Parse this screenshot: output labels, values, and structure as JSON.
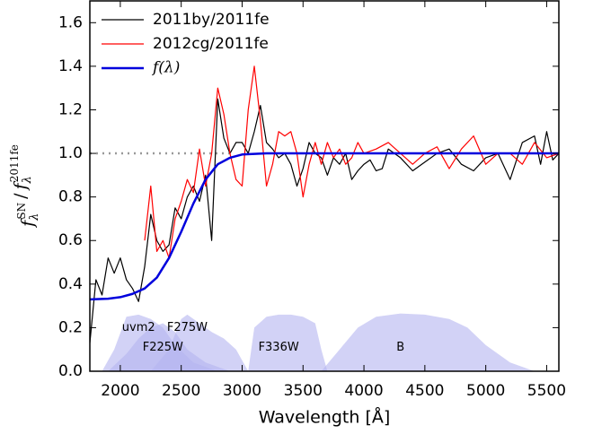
{
  "chart_data": {
    "type": "line",
    "xlabel": "Wavelength [Å]",
    "ylabel_parts": [
      {
        "base": "f",
        "sub": "λ",
        "sup": "SN"
      },
      "/",
      {
        "base": "f",
        "sub": "λ",
        "sup": "2011fe"
      }
    ],
    "xlim": [
      1750,
      5600
    ],
    "ylim": [
      0,
      1.7
    ],
    "xticks": [
      2000,
      2500,
      3000,
      3500,
      4000,
      4500,
      5000,
      5500
    ],
    "yticks": [
      {
        "value": 0,
        "label": "0.0"
      },
      0.2,
      0.4,
      0.6,
      0.8,
      {
        "value": 1,
        "label": "1.0"
      },
      1.2,
      1.4,
      1.6
    ],
    "legend": "upper left",
    "reference_line": {
      "y": 1,
      "x": [
        1750,
        2900
      ],
      "color": "#999999"
    },
    "series": [
      {
        "name": "2011by/2011fe",
        "color": "#000000",
        "x": [
          1750,
          1800,
          1850,
          1900,
          1950,
          2000,
          2050,
          2100,
          2150,
          2200,
          2250,
          2300,
          2350,
          2400,
          2450,
          2500,
          2550,
          2600,
          2650,
          2700,
          2750,
          2800,
          2850,
          2900,
          2950,
          3000,
          3050,
          3100,
          3150,
          3200,
          3250,
          3300,
          3350,
          3400,
          3450,
          3500,
          3550,
          3600,
          3650,
          3700,
          3750,
          3800,
          3850,
          3900,
          3950,
          4000,
          4050,
          4100,
          4150,
          4200,
          4300,
          4400,
          4500,
          4600,
          4700,
          4800,
          4900,
          5000,
          5100,
          5200,
          5300,
          5400,
          5450,
          5500,
          5550,
          5600
        ],
        "values": [
          0.13,
          0.42,
          0.35,
          0.52,
          0.45,
          0.52,
          0.42,
          0.38,
          0.32,
          0.48,
          0.72,
          0.6,
          0.55,
          0.58,
          0.75,
          0.7,
          0.8,
          0.85,
          0.78,
          0.9,
          0.6,
          1.25,
          1.07,
          1.0,
          1.05,
          1.05,
          1.0,
          1.1,
          1.22,
          1.05,
          1.02,
          0.98,
          1.0,
          0.95,
          0.85,
          0.93,
          1.05,
          1.0,
          0.98,
          0.9,
          0.98,
          0.95,
          1.0,
          0.88,
          0.92,
          0.95,
          0.97,
          0.92,
          0.93,
          1.02,
          0.98,
          0.92,
          0.96,
          1.0,
          1.02,
          0.95,
          0.92,
          0.98,
          1.0,
          0.88,
          1.05,
          1.08,
          0.95,
          1.1,
          0.97,
          1.0
        ]
      },
      {
        "name": "2012cg/2011fe",
        "color": "#ff0000",
        "x": [
          2200,
          2250,
          2300,
          2350,
          2400,
          2450,
          2500,
          2550,
          2600,
          2650,
          2700,
          2750,
          2800,
          2850,
          2900,
          2950,
          3000,
          3050,
          3100,
          3150,
          3200,
          3250,
          3300,
          3350,
          3400,
          3450,
          3500,
          3550,
          3600,
          3650,
          3700,
          3750,
          3800,
          3850,
          3900,
          3950,
          4000,
          4100,
          4200,
          4300,
          4400,
          4500,
          4600,
          4700,
          4800,
          4900,
          5000,
          5100,
          5200,
          5300,
          5400,
          5500,
          5600
        ],
        "values": [
          0.6,
          0.85,
          0.55,
          0.6,
          0.52,
          0.7,
          0.78,
          0.88,
          0.82,
          1.02,
          0.85,
          1.0,
          1.3,
          1.18,
          1.0,
          0.88,
          0.85,
          1.2,
          1.4,
          1.15,
          0.85,
          0.95,
          1.1,
          1.08,
          1.1,
          1.0,
          0.8,
          0.95,
          1.05,
          0.95,
          1.05,
          0.98,
          1.02,
          0.95,
          0.98,
          1.05,
          1.0,
          1.02,
          1.05,
          1.0,
          0.95,
          1.0,
          1.03,
          0.93,
          1.02,
          1.08,
          0.95,
          1.0,
          1.0,
          0.95,
          1.05,
          0.98,
          1.0
        ]
      },
      {
        "name": "f(λ)",
        "color": "#0000dd",
        "x": [
          1750,
          1900,
          2000,
          2100,
          2200,
          2300,
          2400,
          2500,
          2600,
          2700,
          2800,
          2900,
          3000,
          3200,
          5600
        ],
        "values": [
          0.33,
          0.333,
          0.34,
          0.355,
          0.38,
          0.43,
          0.52,
          0.64,
          0.77,
          0.88,
          0.95,
          0.98,
          0.995,
          1.0,
          1.0
        ]
      }
    ],
    "filters": {
      "color": "#b4b4f0",
      "items": [
        {
          "name": "uvm2",
          "x": [
            1850,
            1950,
            2050,
            2150,
            2250,
            2350,
            2450,
            2600,
            2800
          ],
          "values": [
            0,
            0.1,
            0.25,
            0.26,
            0.24,
            0.2,
            0.12,
            0.04,
            0
          ]
        },
        {
          "name": "F225W",
          "x": [
            1900,
            2050,
            2150,
            2250,
            2350,
            2450,
            2550,
            2700,
            2900
          ],
          "values": [
            0,
            0.08,
            0.15,
            0.2,
            0.22,
            0.18,
            0.1,
            0.04,
            0
          ]
        },
        {
          "name": "F275W",
          "x": [
            2250,
            2400,
            2500,
            2550,
            2650,
            2750,
            2850,
            2950,
            3050
          ],
          "values": [
            0,
            0.1,
            0.24,
            0.26,
            0.22,
            0.18,
            0.15,
            0.1,
            0
          ]
        },
        {
          "name": "F336W",
          "x": [
            3050,
            3100,
            3200,
            3300,
            3400,
            3500,
            3600,
            3650,
            3700
          ],
          "values": [
            0,
            0.2,
            0.25,
            0.26,
            0.26,
            0.25,
            0.22,
            0.1,
            0
          ]
        },
        {
          "name": "B",
          "x": [
            3650,
            3800,
            3950,
            4100,
            4300,
            4500,
            4700,
            4850,
            5000,
            5200,
            5400
          ],
          "values": [
            0,
            0.1,
            0.2,
            0.25,
            0.265,
            0.26,
            0.24,
            0.2,
            0.12,
            0.04,
            0
          ]
        }
      ]
    }
  }
}
